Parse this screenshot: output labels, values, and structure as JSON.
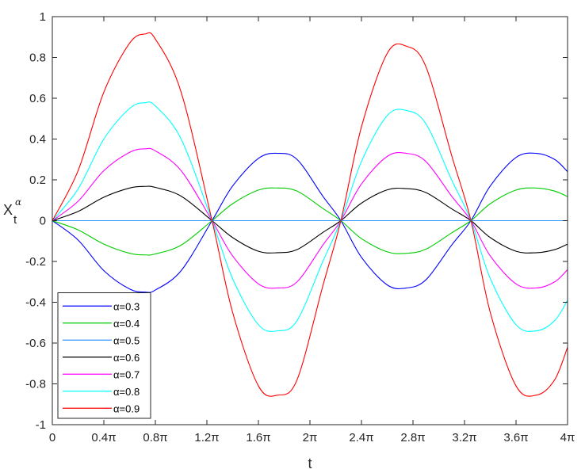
{
  "chart_data": {
    "type": "line",
    "title": "",
    "xlabel": "t",
    "ylabel": "X",
    "ylabel_sub": "t",
    "ylabel_sup": "α",
    "xlim": [
      0,
      4
    ],
    "x_unit": "π",
    "ylim": [
      -1,
      1
    ],
    "grid": false,
    "legend_position": "bottom-left",
    "x_ticks": [
      0,
      0.4,
      0.8,
      1.2,
      1.6,
      2,
      2.4,
      2.8,
      3.2,
      3.6,
      4
    ],
    "x_tick_labels": [
      "0",
      "0.4π",
      "0.8π",
      "1.2π",
      "1.6π",
      "2π",
      "2.4π",
      "2.8π",
      "3.2π",
      "3.6π",
      "4π"
    ],
    "y_ticks": [
      -1,
      -0.8,
      -0.6,
      -0.4,
      -0.2,
      0,
      0.2,
      0.4,
      0.6,
      0.8,
      1
    ],
    "y_tick_labels": [
      "-1",
      "-0.8",
      "-0.6",
      "-0.4",
      "-0.2",
      "0",
      "0.2",
      "0.4",
      "0.6",
      "0.8",
      "1"
    ],
    "x": [
      0,
      0.2,
      0.4,
      0.6,
      0.72,
      0.8,
      1.0,
      1.24,
      1.4,
      1.6,
      1.75,
      1.9,
      2.1,
      2.24,
      2.4,
      2.6,
      2.75,
      2.9,
      3.1,
      3.25,
      3.4,
      3.6,
      3.76,
      3.9,
      4.0
    ],
    "series": [
      {
        "name": "α=0.3",
        "color": "#0000ff",
        "values": [
          0,
          -0.095,
          -0.245,
          -0.335,
          -0.35,
          -0.34,
          -0.245,
          0,
          0.17,
          0.305,
          0.33,
          0.3,
          0.12,
          0,
          -0.18,
          -0.315,
          -0.33,
          -0.29,
          -0.12,
          0,
          0.17,
          0.31,
          0.33,
          0.3,
          0.24
        ]
      },
      {
        "name": "α=0.4",
        "color": "#00cc00",
        "values": [
          0,
          -0.045,
          -0.115,
          -0.16,
          -0.168,
          -0.163,
          -0.12,
          0,
          0.083,
          0.15,
          0.16,
          0.145,
          0.06,
          0,
          -0.088,
          -0.153,
          -0.16,
          -0.14,
          -0.06,
          0,
          0.083,
          0.15,
          0.16,
          0.145,
          0.118
        ]
      },
      {
        "name": "α=0.5",
        "color": "#3399ff",
        "values": [
          0,
          0,
          0,
          0,
          0,
          0,
          0,
          0,
          0,
          0,
          0,
          0,
          0,
          0,
          0,
          0,
          0,
          0,
          0,
          0,
          0,
          0,
          0,
          0,
          0
        ]
      },
      {
        "name": "α=0.6",
        "color": "#000000",
        "values": [
          0,
          0.045,
          0.115,
          0.16,
          0.168,
          0.163,
          0.12,
          0,
          -0.083,
          -0.15,
          -0.157,
          -0.142,
          -0.058,
          0,
          0.086,
          0.151,
          0.157,
          0.138,
          0.058,
          0,
          -0.083,
          -0.15,
          -0.157,
          -0.142,
          -0.115
        ]
      },
      {
        "name": "α=0.7",
        "color": "#ff00ff",
        "values": [
          0,
          0.095,
          0.245,
          0.335,
          0.352,
          0.342,
          0.245,
          0,
          -0.173,
          -0.31,
          -0.33,
          -0.3,
          -0.12,
          0,
          0.18,
          0.315,
          0.33,
          0.29,
          0.12,
          0,
          -0.173,
          -0.31,
          -0.33,
          -0.3,
          -0.24
        ]
      },
      {
        "name": "α=0.8",
        "color": "#00ffff",
        "values": [
          0,
          0.155,
          0.4,
          0.55,
          0.578,
          0.562,
          0.4,
          0,
          -0.285,
          -0.51,
          -0.54,
          -0.49,
          -0.2,
          0,
          0.29,
          0.515,
          0.54,
          0.475,
          0.2,
          0,
          -0.283,
          -0.51,
          -0.54,
          -0.49,
          -0.39
        ]
      },
      {
        "name": "α=0.9",
        "color": "#ff0000",
        "values": [
          0,
          0.245,
          0.63,
          0.87,
          0.915,
          0.89,
          0.63,
          0,
          -0.45,
          -0.81,
          -0.855,
          -0.78,
          -0.32,
          0,
          0.46,
          0.82,
          0.855,
          0.755,
          0.32,
          0,
          -0.45,
          -0.81,
          -0.855,
          -0.78,
          -0.62
        ]
      }
    ]
  }
}
